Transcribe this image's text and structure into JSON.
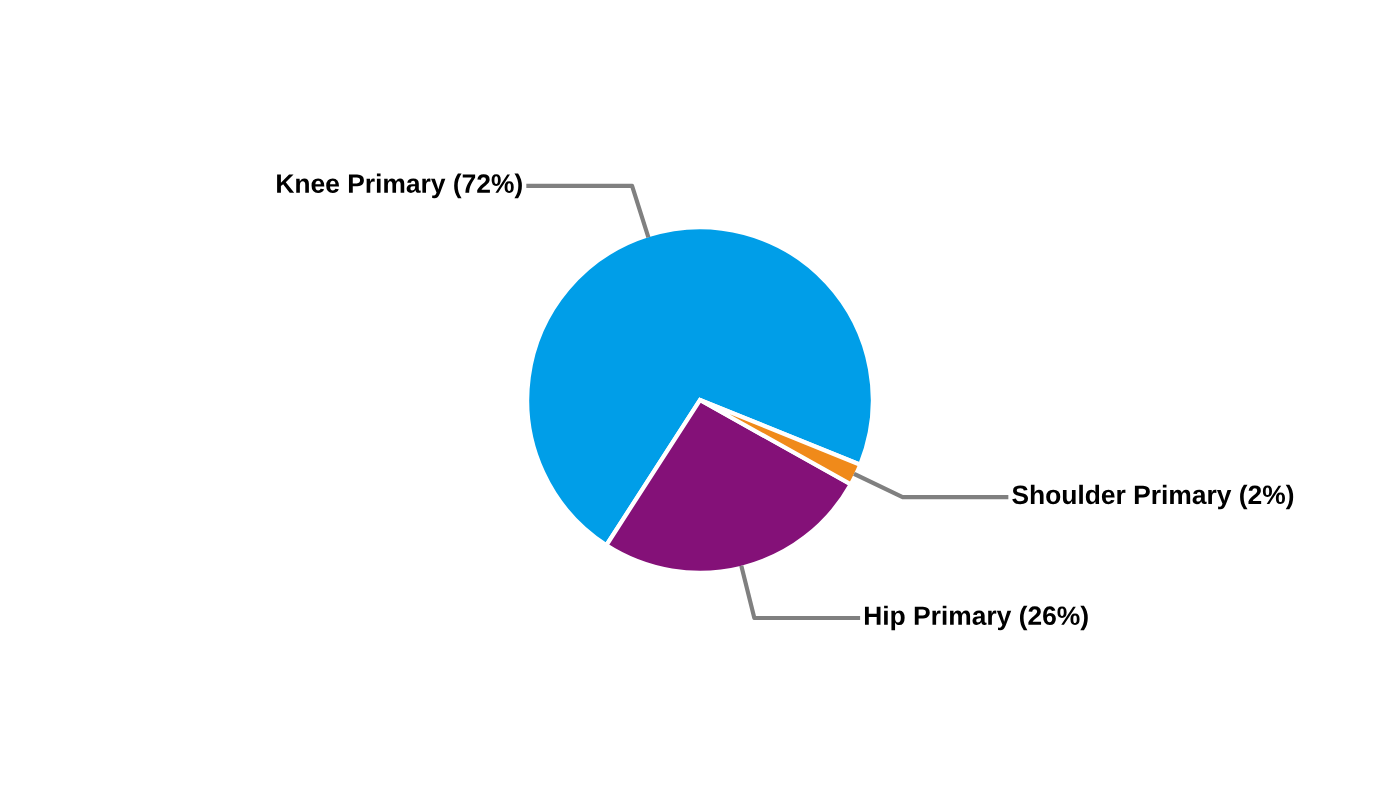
{
  "chart_data": {
    "type": "pie",
    "categories": [
      "Knee Primary (72%)",
      "Hip Primary (26%)",
      "Shoulder Primary (2%)"
    ],
    "values": [
      72,
      26,
      2
    ],
    "colors": [
      "#009ee8",
      "#841178",
      "#f08a1a"
    ]
  }
}
